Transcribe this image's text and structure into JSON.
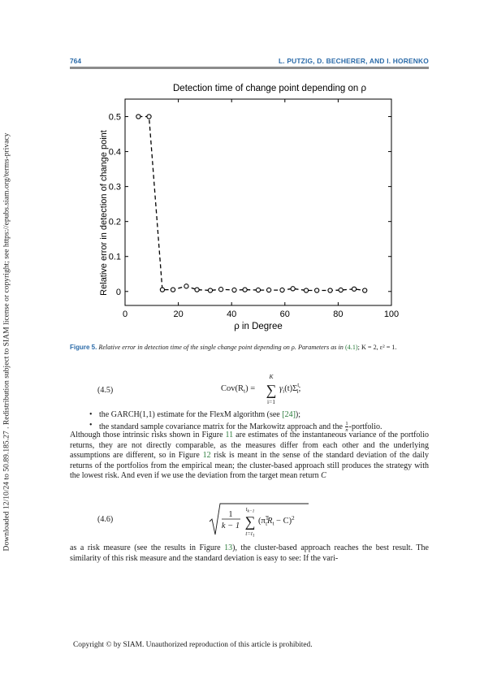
{
  "side_note": "Downloaded 12/10/24 to 50.89.185.27 . Redistribution subject to SIAM license or copyright; see https://epubs.siam.org/terms-privacy",
  "header": {
    "page_number": "764",
    "authors": "L. PUTZIG, D. BECHERER, AND I. HORENKO"
  },
  "chart_data": {
    "type": "line",
    "title": "Detection time of change point depending on ρ",
    "xlabel": "ρ in Degree",
    "ylabel": "Relative error in detection of change point",
    "xlim": [
      0,
      100
    ],
    "ylim": [
      -0.04,
      0.55
    ],
    "xticks": [
      0,
      20,
      40,
      60,
      80,
      100
    ],
    "yticks": [
      0,
      0.1,
      0.2,
      0.3,
      0.4,
      0.5
    ],
    "xtick_labels": [
      "0",
      "20",
      "40",
      "60",
      "80",
      "100"
    ],
    "ytick_labels": [
      "0",
      "0.1",
      "0.2",
      "0.3",
      "0.4",
      "0.5"
    ],
    "grid": false,
    "series": [
      {
        "line_style": "dashed",
        "marker": "circle-open",
        "x": [
          5,
          9,
          14,
          18,
          23,
          27,
          32,
          36,
          41,
          45,
          50,
          54,
          59,
          63,
          68,
          72,
          77,
          81,
          86,
          90
        ],
        "y": [
          0.5,
          0.5,
          0.005,
          0.005,
          0.015,
          0.005,
          0.003,
          0.006,
          0.004,
          0.005,
          0.004,
          0.004,
          0.004,
          0.008,
          0.003,
          0.003,
          0.003,
          0.004,
          0.007,
          0.003
        ]
      }
    ]
  },
  "caption": {
    "label": "Figure 5.",
    "text": "Relative error in detection time of the single change point depending on ρ. Parameters as in",
    "ref": "(4.1)",
    "params": "; K = 2, ε² = 1."
  },
  "eq45": {
    "number": "(4.5)",
    "lhs": "Cov(R",
    "lhs_sub": "t",
    "lhs_end": ") =",
    "sum_top": "K",
    "sum_bottom": "i=1",
    "term": "γ",
    "term_sub": "i",
    "term_arg": "(t)Σ",
    "term_sup": "t",
    "term_sub2": "i",
    "term_end": ";"
  },
  "bullets": [
    {
      "before": "the GARCH(1,1) estimate for the FlexM algorithm (see ",
      "ref": "[24]",
      "after": ");"
    },
    {
      "before": "the standard sample covariance matrix for the Markowitz approach and the ",
      "frac_num": "1",
      "frac_den": "n",
      "after": "-portfolio."
    }
  ],
  "paragraph1": {
    "t1": "Although those intrinsic risks shown in Figure ",
    "r1": "11",
    "t2": " are estimates of the instantaneous variance of the portfolio returns, they are not directly comparable, as the measures differ from each other and the underlying assumptions are different, so in Figure ",
    "r2": "12",
    "t3": " risk is meant in the sense of the standard deviation of the daily returns of the portfolios from the empirical mean; the cluster-based approach still produces the strategy with the lowest risk. And even if we use the deviation from the target mean return ",
    "var": "C"
  },
  "eq46": {
    "number": "(4.6)",
    "frac_num": "1",
    "frac_den": "k − 1",
    "sum_top": "t",
    "sum_top_sub": "k−1",
    "sum_bottom": "t=t",
    "sum_bottom_sub": "1",
    "term_open": "(π",
    "term_sup": "T",
    "term_sub": "t",
    "term_mid": "R",
    "term_sub2": "t",
    "term_end": " − C)",
    "term_sq": "2"
  },
  "paragraph2": {
    "t1": "as a risk measure (see the results in Figure ",
    "r1": "13",
    "t2": "), the cluster-based approach reaches the best result. The similarity of this risk measure and the standard deviation is easy to see: If the vari-"
  },
  "footer": "Copyright © by SIAM. Unauthorized reproduction of this article is prohibited."
}
